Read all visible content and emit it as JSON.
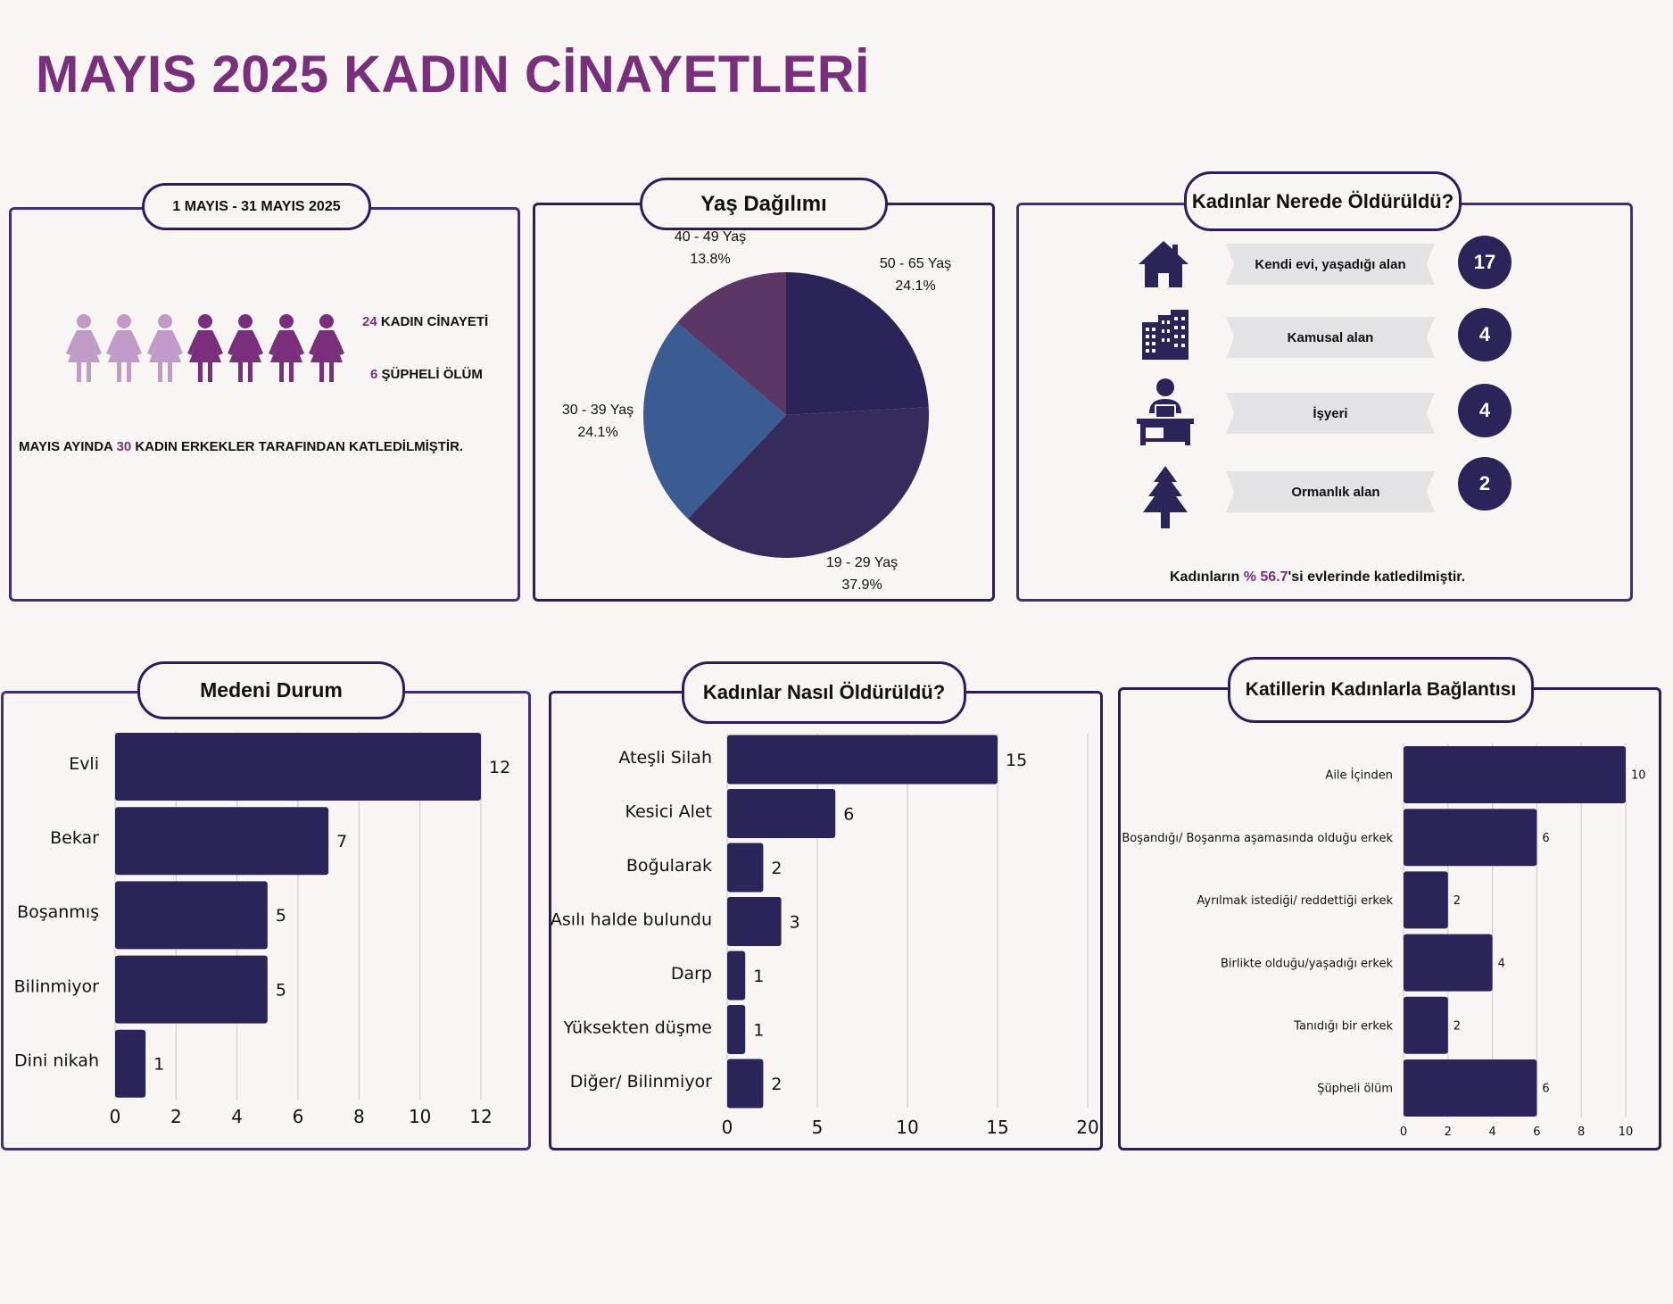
{
  "title": "MAYIS 2025 KADIN CİNAYETLERİ",
  "colors": {
    "title": "#7a2f7d",
    "bar": "#2a2459",
    "frame": "#3d3275",
    "figure_light": "#c19bc8",
    "figure_dark": "#7a2f7d",
    "pie": [
      "#2a2459",
      "#352c5c",
      "#3b5b93",
      "#5a3764"
    ]
  },
  "summary": {
    "date_range": "1 MAYIS - 31 MAYIS 2025",
    "femicide_count": "24",
    "femicide_label": "KADIN CİNAYETİ",
    "suspicious_count": "6",
    "suspicious_label": "ŞÜPHELİ ÖLÜM",
    "total_prefix": "MAYIS AYINDA",
    "total_count": "30",
    "total_suffix": "KADIN ERKEKLER TARAFINDAN KATLEDİLMİŞTİR.",
    "figure_icon": "woman-figure-icon",
    "figures_light": 3,
    "figures_dark": 4
  },
  "locations": {
    "title": "Kadınlar Nerede Öldürüldü?",
    "items": [
      {
        "label": "Kendi evi, yaşadığı alan",
        "count": "17",
        "icon": "house-icon"
      },
      {
        "label": "Kamusal alan",
        "count": "4",
        "icon": "buildings-icon"
      },
      {
        "label": "İşyeri",
        "count": "4",
        "icon": "office-worker-icon"
      },
      {
        "label": "Ormanlık alan",
        "count": "2",
        "icon": "tree-icon"
      }
    ],
    "footer_prefix": "Kadınların",
    "footer_pct": "% 56.7",
    "footer_suffix": "'si evlerinde katledilmiştir."
  },
  "chart_data": [
    {
      "type": "pie",
      "title": "Yaş Dağılımı",
      "slices": [
        {
          "label": "50 - 65 Yaş",
          "pct": "24.1%",
          "value": 24.1
        },
        {
          "label": "19 - 29 Yaş",
          "pct": "37.9%",
          "value": 37.9
        },
        {
          "label": "30 - 39 Yaş",
          "pct": "24.1%",
          "value": 24.1
        },
        {
          "label": "40 - 49 Yaş",
          "pct": "13.8%",
          "value": 13.8
        }
      ]
    },
    {
      "type": "bar",
      "orientation": "horizontal",
      "title": "Medeni Durum",
      "categories": [
        "Evli",
        "Bekar",
        "Boşanmış",
        "Bilinmiyor",
        "Dini nikah"
      ],
      "values": [
        12,
        7,
        5,
        5,
        1
      ],
      "xlim": [
        0,
        12
      ],
      "ticks": [
        0,
        2,
        4,
        6,
        8,
        10,
        12
      ],
      "grid": true
    },
    {
      "type": "bar",
      "orientation": "horizontal",
      "title": "Kadınlar Nasıl Öldürüldü?",
      "categories": [
        "Ateşli Silah",
        "Kesici Alet",
        "Boğularak",
        "Asılı halde bulundu",
        "Darp",
        "Yüksekten düşme",
        "Diğer/ Bilinmiyor"
      ],
      "values": [
        15,
        6,
        2,
        3,
        1,
        1,
        2
      ],
      "xlim": [
        0,
        20
      ],
      "ticks": [
        0,
        5,
        10,
        15,
        20
      ],
      "grid": true
    },
    {
      "type": "bar",
      "orientation": "horizontal",
      "title": "Katillerin Kadınlarla Bağlantısı",
      "categories": [
        "Aile İçinden",
        "Boşandığı/ Boşanma aşamasında olduğu erkek",
        "Ayrılmak istediği/ reddettiği erkek",
        "Birlikte olduğu/yaşadığı erkek",
        "Tanıdığı bir erkek",
        "Şüpheli ölüm"
      ],
      "values": [
        10,
        6,
        2,
        4,
        2,
        6
      ],
      "xlim": [
        0,
        10
      ],
      "ticks": [
        0,
        2,
        4,
        6,
        8,
        10
      ],
      "grid": true
    }
  ]
}
